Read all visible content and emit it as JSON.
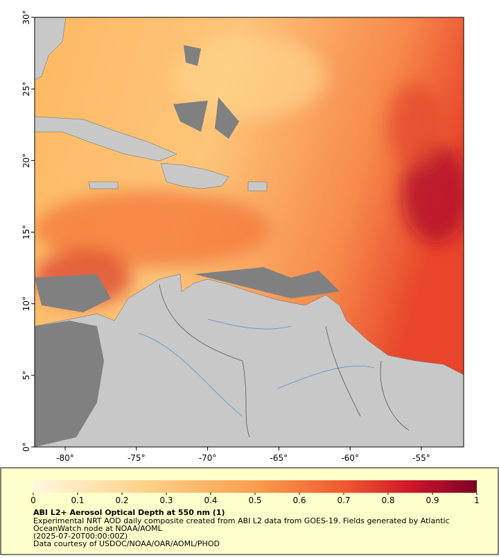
{
  "map": {
    "xaxis": {
      "lim": [
        -82.14,
        -52.03
      ],
      "ticks": [
        {
          "value": -80,
          "label": "-80°"
        },
        {
          "value": -75,
          "label": "-75°"
        },
        {
          "value": -70,
          "label": "-70°"
        },
        {
          "value": -65,
          "label": "-65°"
        },
        {
          "value": -60,
          "label": "-60°"
        },
        {
          "value": -55,
          "label": "-55°"
        }
      ]
    },
    "yaxis": {
      "lim": [
        0,
        30
      ],
      "ticks": [
        {
          "value": 0,
          "label": "0°"
        },
        {
          "value": 5,
          "label": "5°"
        },
        {
          "value": 10,
          "label": "10°"
        },
        {
          "value": 15,
          "label": "15°"
        },
        {
          "value": 20,
          "label": "20°"
        },
        {
          "value": 25,
          "label": "25°"
        },
        {
          "value": 30,
          "label": "30°"
        }
      ]
    }
  },
  "colorbar": {
    "lim": [
      0,
      1
    ],
    "ticks": [
      0,
      0.1,
      0.2,
      0.3,
      0.4,
      0.5,
      0.6,
      0.7,
      0.8,
      0.9,
      1
    ]
  },
  "caption": {
    "title": "ABI L2+ Aerosol Optical Depth at 550 nm (1)",
    "lines": [
      "Experimental NRT AOD daily composite created from ABI L2 data from GOES-19. Fields generated by Atlantic",
      "OceanWatch node at NOAA/AOML",
      "(2025-07-20T00:00:00Z)",
      "Data courtesy of USDOC/NOAA/OAR/AOML/PHOD"
    ]
  }
}
